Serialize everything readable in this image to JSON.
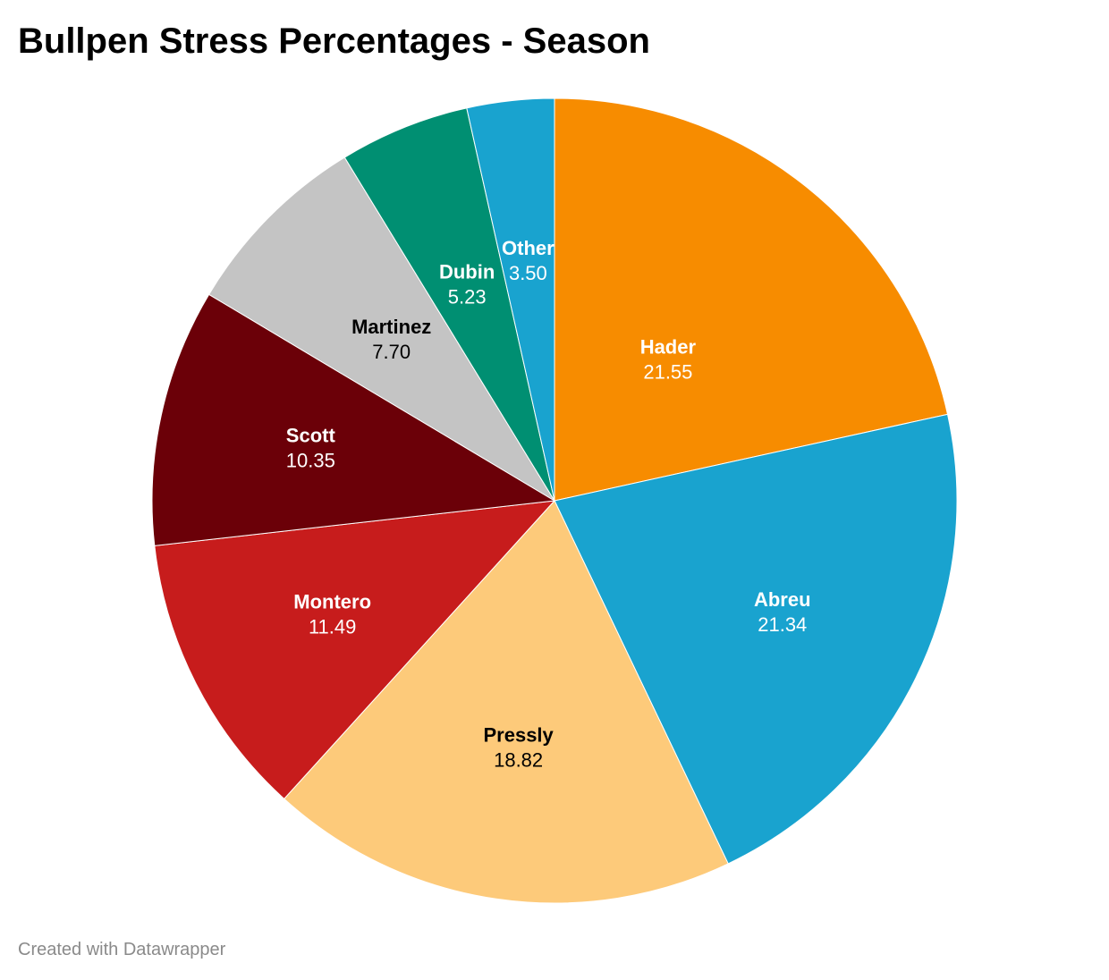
{
  "chart_data": {
    "type": "pie",
    "title": "Bullpen Stress Percentages - Season",
    "slices": [
      {
        "label": "Hader",
        "value": 21.55,
        "display": "21.55",
        "color": "#f78c00",
        "text_color": "#ffffff"
      },
      {
        "label": "Abreu",
        "value": 21.34,
        "display": "21.34",
        "color": "#19a3cf",
        "text_color": "#ffffff"
      },
      {
        "label": "Pressly",
        "value": 18.82,
        "display": "18.82",
        "color": "#fdca7a",
        "text_color": "#000000"
      },
      {
        "label": "Montero",
        "value": 11.49,
        "display": "11.49",
        "color": "#c71c1c",
        "text_color": "#ffffff"
      },
      {
        "label": "Scott",
        "value": 10.35,
        "display": "10.35",
        "color": "#6b0008",
        "text_color": "#ffffff"
      },
      {
        "label": "Martinez",
        "value": 7.7,
        "display": "7.70",
        "color": "#c4c4c4",
        "text_color": "#000000"
      },
      {
        "label": "Dubin",
        "value": 5.23,
        "display": "5.23",
        "color": "#008f72",
        "text_color": "#ffffff"
      },
      {
        "label": "Other",
        "value": 3.5,
        "display": "3.50",
        "color": "#19a3cf",
        "text_color": "#ffffff"
      }
    ],
    "start_angle_degrees": 0,
    "direction": "clockwise",
    "legend": "none"
  },
  "footer": {
    "credit": "Created with Datawrapper"
  }
}
